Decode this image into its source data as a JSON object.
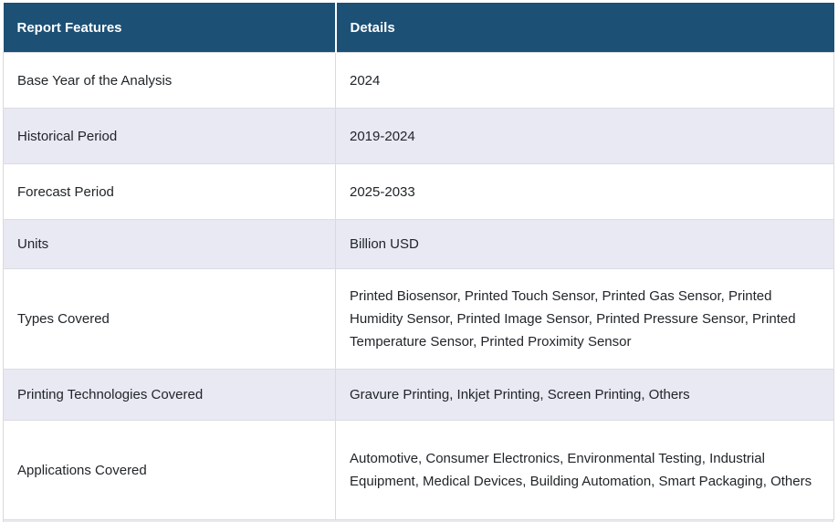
{
  "colors": {
    "header_bg": "#1d5075",
    "header_text": "#ffffff",
    "row_bg": "#ffffff",
    "row_alt_bg": "#e8e9f3",
    "border": "#d9d9df",
    "body_text": "#212529"
  },
  "table": {
    "columns": {
      "feature": "Report Features",
      "detail": "Details"
    },
    "rows": [
      {
        "feature": "Base Year of the Analysis",
        "detail": "2024"
      },
      {
        "feature": "Historical Period",
        "detail": "2019-2024"
      },
      {
        "feature": "Forecast Period",
        "detail": "2025-2033"
      },
      {
        "feature": "Units",
        "detail": "Billion USD"
      },
      {
        "feature": "Types Covered",
        "detail": "Printed Biosensor, Printed Touch Sensor, Printed Gas Sensor, Printed Humidity Sensor, Printed Image Sensor, Printed Pressure Sensor, Printed Temperature Sensor, Printed Proximity Sensor"
      },
      {
        "feature": "Printing Technologies Covered",
        "detail": "Gravure Printing, Inkjet Printing, Screen Printing, Others"
      },
      {
        "feature": "Applications Covered",
        "detail": "Automotive, Consumer Electronics, Environmental Testing, Industrial Equipment, Medical Devices, Building Automation, Smart Packaging, Others"
      }
    ]
  }
}
